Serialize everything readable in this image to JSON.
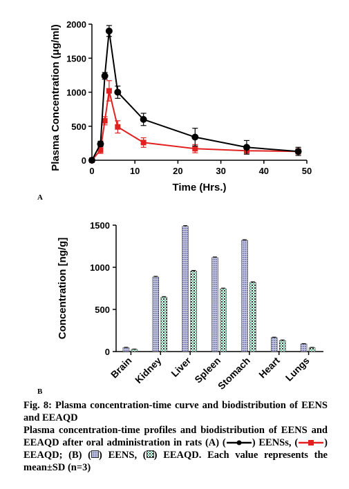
{
  "chart_data": [
    {
      "type": "line",
      "panel_label": "A",
      "xlabel": "Time (Hrs.)",
      "ylabel": "Plasma Concentration (μg/ml)",
      "xlim": [
        0,
        50
      ],
      "ylim": [
        0,
        2000
      ],
      "xticks": [
        0,
        10,
        20,
        30,
        40,
        50
      ],
      "yticks": [
        0,
        500,
        1000,
        1500,
        2000
      ],
      "grid": false,
      "legend": "none",
      "series": [
        {
          "color": "#000000",
          "marker": "circle",
          "x": [
            0,
            2,
            3,
            4,
            6,
            12,
            24,
            36,
            48
          ],
          "y": [
            0,
            240,
            1240,
            1900,
            1000,
            600,
            340,
            190,
            130
          ],
          "sd": [
            0,
            40,
            50,
            80,
            90,
            90,
            130,
            100,
            60
          ]
        },
        {
          "color": "#e32020",
          "marker": "square",
          "x": [
            0,
            2,
            3,
            4,
            6,
            12,
            24,
            36,
            48
          ],
          "y": [
            0,
            150,
            580,
            1020,
            490,
            260,
            170,
            140,
            130
          ],
          "sd": [
            0,
            50,
            60,
            150,
            90,
            70,
            60,
            50,
            40
          ]
        }
      ]
    },
    {
      "type": "bar",
      "panel_label": "B",
      "ylabel": "Concentration [ng/g]",
      "ylim": [
        0,
        1500
      ],
      "yticks": [
        0,
        500,
        1000,
        1500
      ],
      "grid": false,
      "legend": "none",
      "categories": [
        "Brain",
        "Kidney",
        "Liver",
        "Spleen",
        "Stomach",
        "Heart",
        "Lungs"
      ],
      "series": [
        {
          "pattern": "crosshatch-blue",
          "color": "#4a4f8c",
          "values": [
            45,
            885,
            1485,
            1115,
            1320,
            165,
            90
          ],
          "sd": [
            6,
            8,
            10,
            8,
            8,
            6,
            5
          ]
        },
        {
          "pattern": "checker-green",
          "color": "#63c8a0",
          "values": [
            25,
            645,
            955,
            745,
            820,
            130,
            45
          ],
          "sd": [
            5,
            8,
            8,
            8,
            8,
            8,
            5
          ]
        }
      ]
    }
  ],
  "caption": {
    "title": "Fig. 8: Plasma concentration-time curve and biodistribution of EENS and EEAQD",
    "line1": "Plasma concentration-time profiles and biodistribution of EENS and EEAQD after oral administration in rats (A) (",
    "line1_b": ") EENSs, (",
    "line1_c": ") EEAQD; (B) (",
    "line1_d": ") EENS, (",
    "line1_e": ") EEAQD. Each value represents the mean±SD (n=3)"
  }
}
